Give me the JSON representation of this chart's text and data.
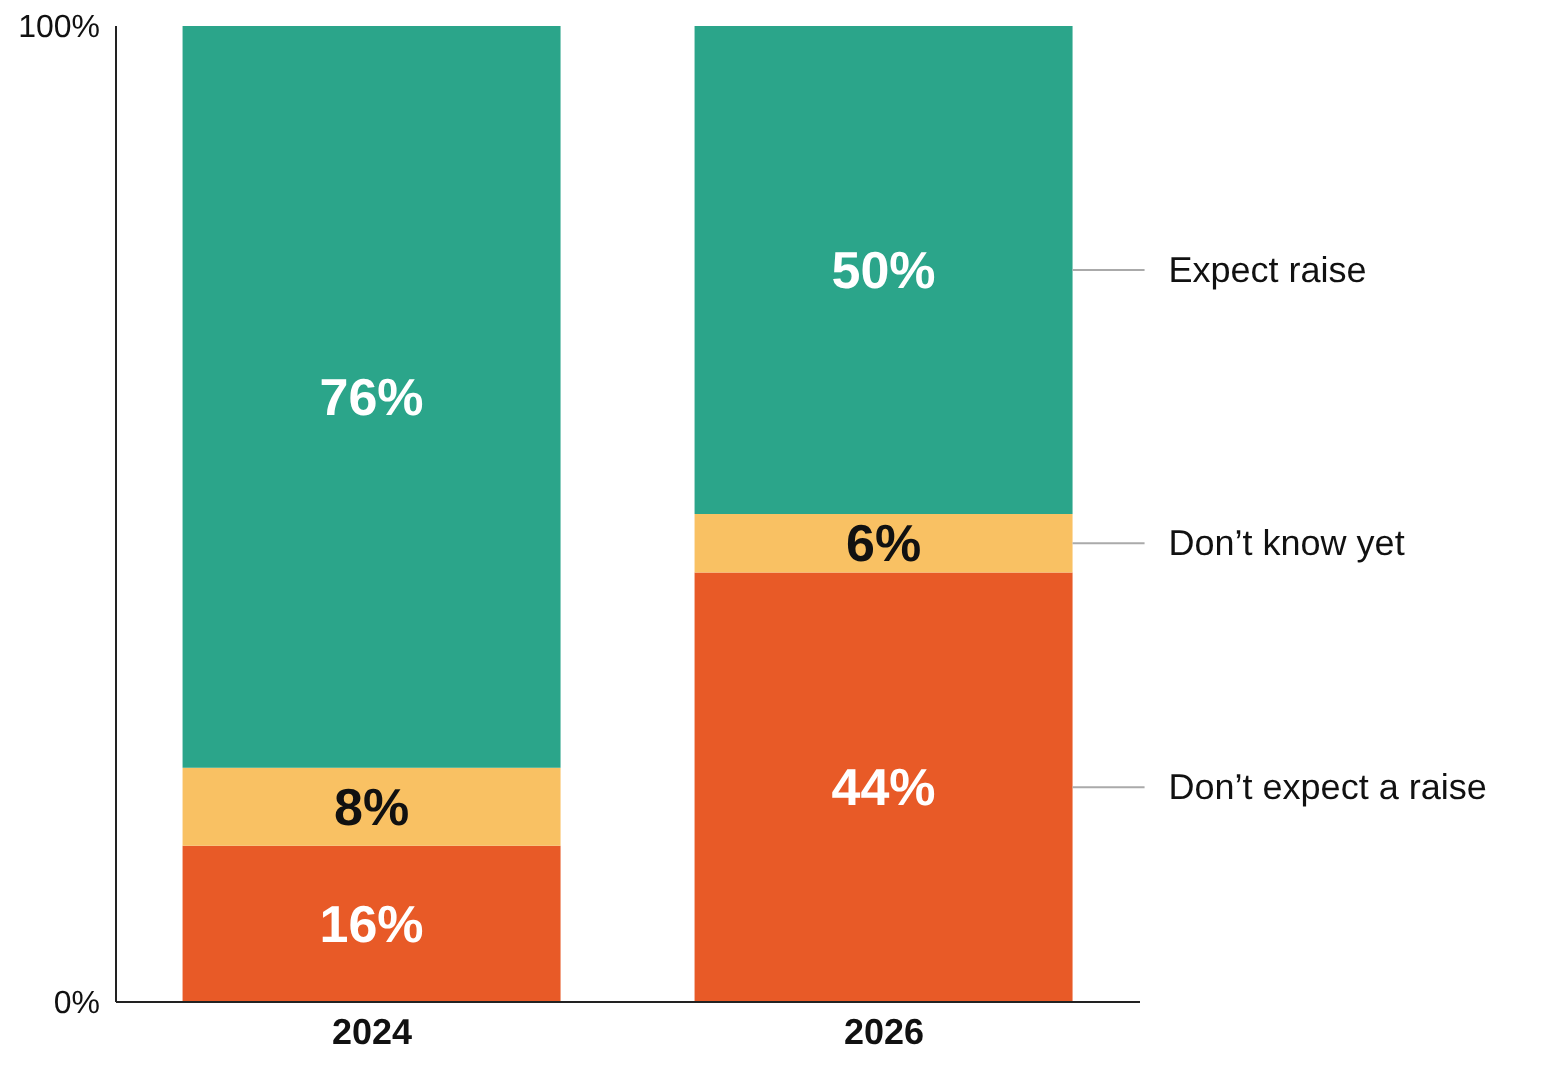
{
  "chart_data": {
    "type": "bar",
    "stacked": true,
    "categories": [
      "2024",
      "2026"
    ],
    "series": [
      {
        "name": "Don’t expect a raise",
        "color": "#e85a27",
        "values": [
          16,
          44
        ],
        "value_labels": [
          "16%",
          "44%"
        ]
      },
      {
        "name": "Don’t know yet",
        "color": "#f9c163",
        "values": [
          8,
          6
        ],
        "value_labels": [
          "8%",
          "6%"
        ]
      },
      {
        "name": "Expect raise",
        "color": "#2ba58a",
        "values": [
          76,
          50
        ],
        "value_labels": [
          "76%",
          "50%"
        ]
      }
    ],
    "ylim": [
      0,
      100
    ],
    "yticks": [
      {
        "value": 0,
        "label": "0%"
      },
      {
        "value": 100,
        "label": "100%"
      }
    ],
    "legend": "right",
    "grid": false
  }
}
